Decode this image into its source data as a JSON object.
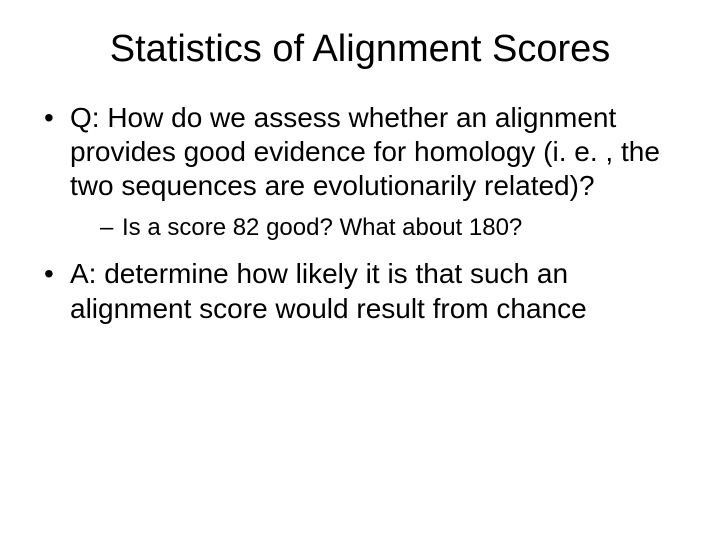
{
  "slide": {
    "title": "Statistics of Alignment Scores",
    "bullets": [
      {
        "text": "Q: How do we assess whether an alignment provides good evidence for homology (i. e. , the two sequences are evolutionarily related)?",
        "sub": [
          "Is a score 82 good? What about 180?"
        ]
      },
      {
        "text": "A: determine how likely it is that such an alignment score would result from chance"
      }
    ],
    "style": {
      "background_color": "#ffffff",
      "text_color": "#000000",
      "title_fontsize": 38,
      "body_fontsize": 28,
      "sub_fontsize": 24,
      "font_family": "Arial"
    }
  }
}
